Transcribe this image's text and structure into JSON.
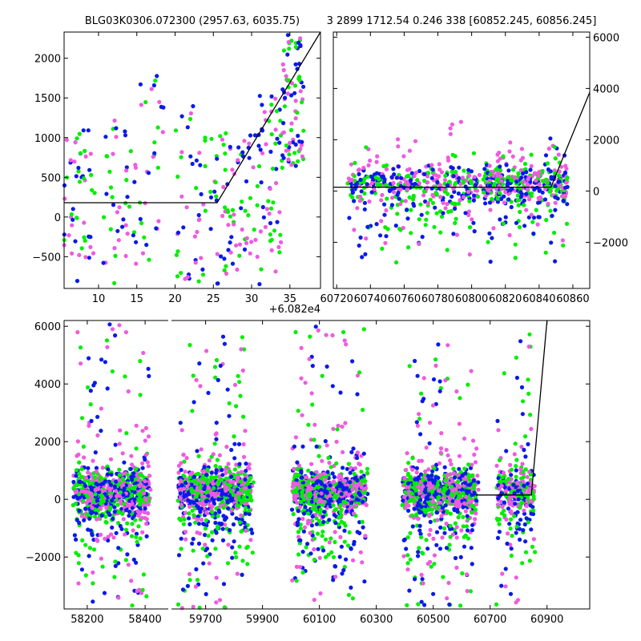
{
  "figure": {
    "title_left": "BLG03K0306.072300 (2957.63, 6035.75)",
    "title_right": "3 2899 1712.54 0.246 338 [60852.245, 60856.245]"
  },
  "colors": {
    "green": "#00ee00",
    "blue": "#0a1ae8",
    "pink": "#ee5be0",
    "model": "#000000"
  },
  "chart_data": [
    {
      "id": "zoom",
      "type": "scatter",
      "title": "BLG03K0306.072300 (2957.63, 6035.75)",
      "xlim": [
        5.5,
        39
      ],
      "ylim": [
        -900,
        2330
      ],
      "x_offset_label": "+6.082e4",
      "x_ticks": [
        10,
        15,
        20,
        25,
        30,
        35
      ],
      "y_ticks": [
        -500,
        0,
        500,
        1000,
        1500,
        2000
      ],
      "y_ticks_side": "left",
      "model": {
        "x": [
          5.5,
          25.5,
          39
        ],
        "y": [
          180,
          180,
          2330
        ]
      },
      "clusters": [
        {
          "x0": 5.5,
          "x1": 9.5,
          "ymin": -850,
          "ymax": 1100,
          "n": 55
        },
        {
          "x0": 10.5,
          "x1": 15,
          "ymin": -850,
          "ymax": 1250,
          "n": 45
        },
        {
          "x0": 15.2,
          "x1": 18.5,
          "ymin": -650,
          "ymax": 1900,
          "n": 30
        },
        {
          "x0": 20,
          "x1": 24,
          "ymin": -850,
          "ymax": 1450,
          "n": 45
        },
        {
          "x0": 24.5,
          "x1": 31,
          "ymin": -850,
          "ymax": 1100,
          "n": 85
        },
        {
          "x0": 31,
          "x1": 34,
          "ymin": -850,
          "ymax": 1600,
          "n": 55
        },
        {
          "x0": 34,
          "x1": 37,
          "ymin": 600,
          "ymax": 2300,
          "n": 80
        }
      ]
    },
    {
      "id": "recent",
      "type": "scatter",
      "xlim": [
        60718,
        60870
      ],
      "ylim": [
        -3800,
        6200
      ],
      "x_ticks": [
        60720,
        60740,
        60760,
        60780,
        60800,
        60820,
        60840,
        60860
      ],
      "y_ticks": [
        -2000,
        0,
        2000,
        4000,
        6000
      ],
      "y_ticks_side": "right",
      "model": {
        "x": [
          60718,
          60847,
          60870
        ],
        "y": [
          150,
          150,
          3850
        ]
      },
      "clusters": [
        {
          "x0": 60726,
          "x1": 60806,
          "ymin": -2500,
          "ymax": 1500,
          "n": 420
        },
        {
          "x0": 60806,
          "x1": 60848,
          "ymin": -2800,
          "ymax": 1700,
          "n": 320
        },
        {
          "x0": 60846,
          "x1": 60857,
          "ymin": -1000,
          "ymax": 2700,
          "n": 90
        }
      ]
    },
    {
      "id": "full",
      "type": "scatter",
      "ylim": [
        -3800,
        6200
      ],
      "y_ticks": [
        -2000,
        0,
        2000,
        4000,
        6000
      ],
      "y_ticks_side": "left",
      "x_ticks": [
        58200,
        58400,
        59700,
        59900,
        60100,
        60300,
        60500,
        60700,
        60900
      ],
      "segments": [
        {
          "xmin": 58120,
          "xmax": 58480,
          "ticks": [
            58200,
            58400
          ]
        },
        {
          "xmin": 59580,
          "xmax": 61050,
          "ticks": [
            59700,
            59900,
            60100,
            60300,
            60500,
            60700,
            60900
          ]
        }
      ],
      "model": {
        "x": [
          60650,
          60845,
          60900
        ],
        "y": [
          150,
          150,
          6200
        ]
      },
      "clusters": [
        {
          "x0": 58150,
          "x1": 58420,
          "ymin": -3700,
          "ymax": 6100,
          "n": 850
        },
        {
          "x0": 59600,
          "x1": 59870,
          "ymin": -3800,
          "ymax": 6000,
          "n": 850
        },
        {
          "x0": 60000,
          "x1": 60270,
          "ymin": -3600,
          "ymax": 6100,
          "n": 850
        },
        {
          "x0": 60390,
          "x1": 60660,
          "ymin": -3700,
          "ymax": 5400,
          "n": 850
        },
        {
          "x0": 60720,
          "x1": 60860,
          "ymin": -3800,
          "ymax": 6100,
          "n": 320
        }
      ]
    }
  ]
}
